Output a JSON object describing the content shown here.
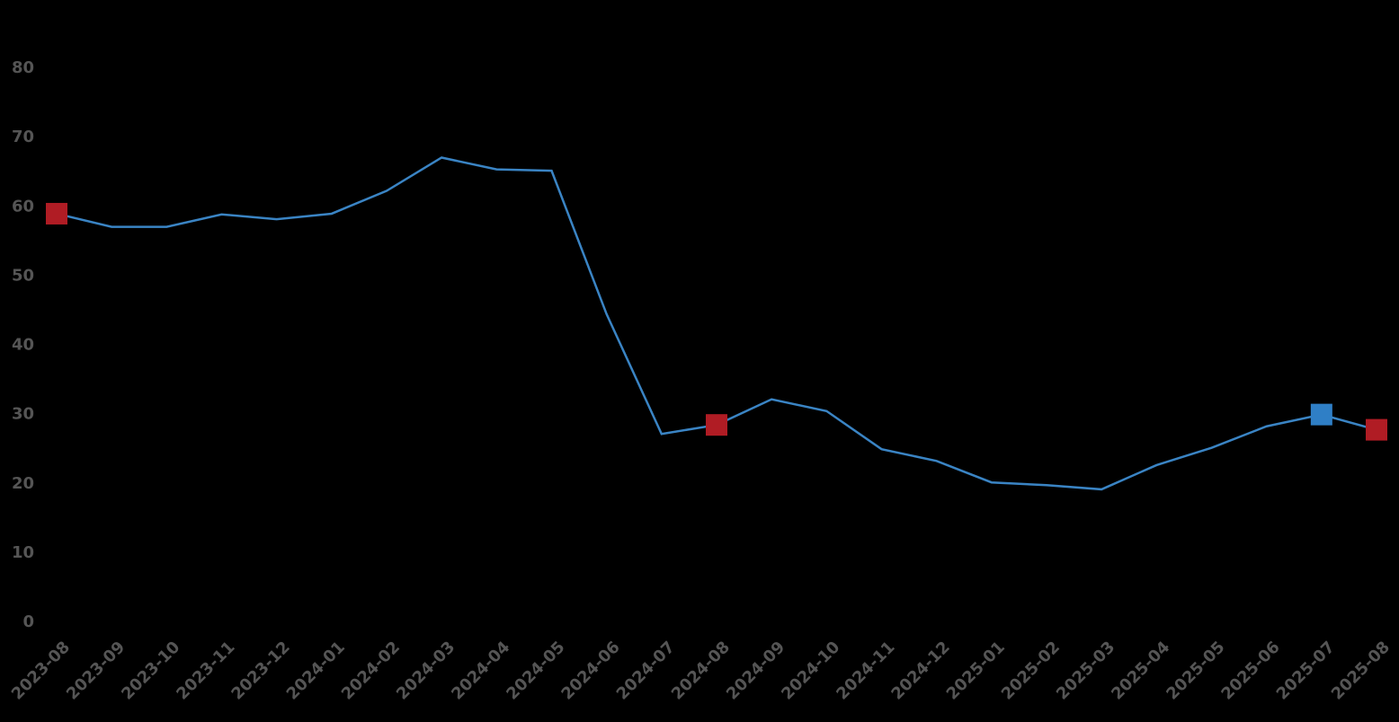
{
  "chart_data": {
    "type": "line",
    "categories": [
      "2023-08",
      "2023-09",
      "2023-10",
      "2023-11",
      "2023-12",
      "2024-01",
      "2024-02",
      "2024-03",
      "2024-04",
      "2024-05",
      "2024-06",
      "2024-07",
      "2024-08",
      "2024-09",
      "2024-10",
      "2024-11",
      "2024-12",
      "2025-01",
      "2025-02",
      "2025-03",
      "2025-04",
      "2025-05",
      "2025-06",
      "2025-07",
      "2025-08"
    ],
    "values": [
      59.0,
      57.1,
      57.1,
      58.9,
      58.2,
      59.0,
      62.3,
      67.1,
      65.4,
      65.2,
      44.5,
      27.2,
      28.5,
      32.2,
      30.5,
      25.0,
      23.3,
      20.2,
      19.8,
      19.2,
      22.7,
      25.2,
      28.3,
      30.0,
      27.8
    ],
    "color": "#3a84c4",
    "marker_colors": [
      "#b01c24",
      null,
      null,
      null,
      null,
      null,
      null,
      null,
      null,
      null,
      null,
      null,
      "#b01c24",
      null,
      null,
      null,
      null,
      null,
      null,
      null,
      null,
      null,
      null,
      "#2f7fc6",
      "#b01c24"
    ],
    "ylim": [
      0,
      80
    ],
    "yticks": [
      0,
      10,
      20,
      30,
      40,
      50,
      60,
      70,
      80
    ],
    "grid": false
  }
}
